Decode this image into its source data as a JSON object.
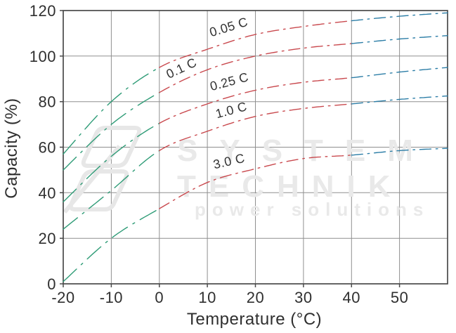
{
  "chart_data": {
    "type": "line",
    "title": "",
    "xlabel": "Temperature (°C)",
    "ylabel": "Capacity (%)",
    "xlim": [
      -20,
      60
    ],
    "ylim": [
      0,
      120
    ],
    "grid": true,
    "line_style": "dash-dot",
    "legend_position": "inline-labels",
    "x": [
      -20,
      -10,
      0,
      10,
      20,
      30,
      40,
      50,
      60
    ],
    "series": [
      {
        "name": "0.05 C",
        "values": [
          57,
          80,
          95,
          103,
          109.5,
          113,
          115.5,
          117.5,
          119
        ]
      },
      {
        "name": "0.1 C",
        "values": [
          50,
          70,
          84,
          94,
          100,
          103.5,
          105.5,
          107.5,
          109
        ]
      },
      {
        "name": "0.25 C",
        "values": [
          36,
          56,
          70.5,
          79,
          85,
          88.5,
          90.5,
          93,
          95
        ]
      },
      {
        "name": "1.0 C",
        "values": [
          24,
          41,
          58.5,
          67,
          73.5,
          77,
          79,
          81,
          82.5
        ]
      },
      {
        "name": "3.0 C",
        "values": [
          1,
          20,
          33,
          44.5,
          50.5,
          55,
          56.5,
          58.5,
          59.5
        ]
      }
    ],
    "x_gridlines": [
      -20,
      -10,
      0,
      10,
      20,
      30,
      40,
      50,
      60
    ],
    "y_gridlines": [
      0,
      20,
      40,
      60,
      80,
      100,
      120
    ],
    "x_tick_labels": [
      "-20",
      "-10",
      "0",
      "10",
      "20",
      "30",
      "40",
      "50"
    ],
    "y_tick_labels": [
      "0",
      "20",
      "40",
      "60",
      "80",
      "100",
      "120"
    ],
    "color_zones": [
      {
        "from": -20,
        "to": 0,
        "color": "#2f9c77"
      },
      {
        "from": 0,
        "to": 40,
        "color": "#c9494e"
      },
      {
        "from": 40,
        "to": 60,
        "color": "#2b7da6"
      }
    ],
    "curve_labels": [
      {
        "text": "0.05 C",
        "t": 14.7,
        "cap": 111,
        "rot": -17
      },
      {
        "text": "0.1 C",
        "t": 5.0,
        "cap": 93,
        "rot": -25
      },
      {
        "text": "0.25 C",
        "t": 14.8,
        "cap": 87,
        "rot": -15
      },
      {
        "text": "1.0 C",
        "t": 15.2,
        "cap": 74.5,
        "rot": -15
      },
      {
        "text": "3.0 C",
        "t": 14.7,
        "cap": 52,
        "rot": -13
      }
    ]
  },
  "watermark": {
    "line1": "SYSTEM",
    "line2": "TECHNIK",
    "line3": "power solutions",
    "color": "#e9e9e9"
  },
  "colors": {
    "grid": "#8f8f8f",
    "plot_border": "#4a4a4a",
    "tick_text": "#2f2f2f",
    "curve_label_text": "#333333",
    "cold_zone": "#2f9c77",
    "mid_zone": "#c9494e",
    "hot_zone": "#2b7da6"
  }
}
